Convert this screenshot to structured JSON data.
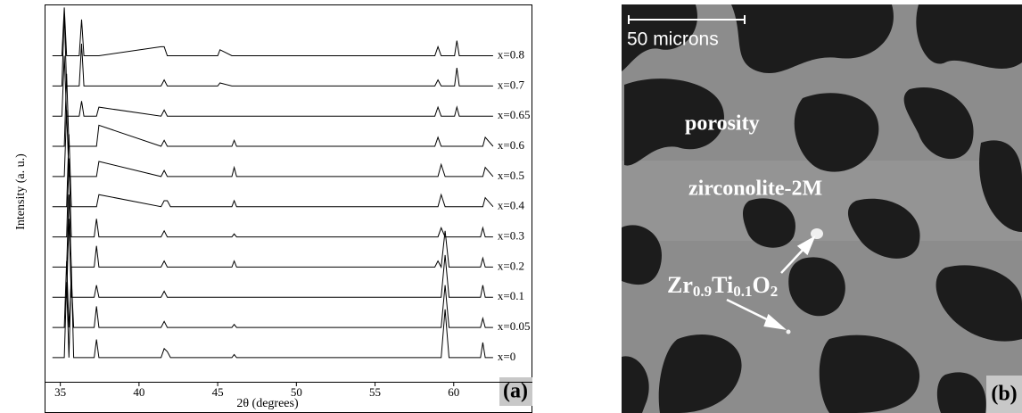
{
  "chart_data": {
    "type": "line",
    "x_label": "2θ (degrees)",
    "y_label": "Intensity (a. u.)",
    "panel_label": "(a)",
    "xlim": [
      34,
      65
    ],
    "ylim": [
      5,
      130
    ],
    "xticks": [
      35,
      40,
      45,
      50,
      55,
      60
    ],
    "x": [
      34.5,
      35.1,
      35.25,
      35.4,
      35.55,
      35.7,
      35.85,
      36.2,
      36.35,
      36.5,
      37.15,
      37.3,
      37.45,
      41.4,
      41.6,
      41.8,
      42.0,
      45.0,
      45.15,
      45.9,
      46.05,
      46.2,
      58.8,
      59.0,
      59.2,
      59.45,
      59.7,
      60.05,
      60.2,
      60.35,
      61.7,
      61.85,
      62.0,
      62.5
    ],
    "series": [
      {
        "name": "x=0",
        "color": "#000000",
        "values": [
          13,
          13,
          13,
          38,
          13,
          43,
          13,
          13,
          13,
          13,
          13,
          19,
          13,
          13,
          16,
          15,
          13,
          13,
          13,
          13,
          14,
          13,
          13,
          13,
          13,
          29,
          13,
          13,
          13,
          13,
          13,
          18,
          13,
          13
        ]
      },
      {
        "name": "x=0.05",
        "color": "#000000",
        "values": [
          23,
          23,
          23,
          45,
          23,
          39,
          23,
          23,
          23,
          23,
          23,
          30,
          23,
          23,
          25,
          23,
          23,
          23,
          23,
          23,
          24,
          23,
          23,
          23,
          23,
          37,
          23,
          23,
          23,
          23,
          23,
          26,
          23,
          23
        ]
      },
      {
        "name": "x=0.1",
        "color": "#000000",
        "values": [
          33,
          33,
          33,
          33,
          59,
          33,
          33,
          33,
          33,
          33,
          33,
          37,
          33,
          33,
          35,
          33,
          33,
          33,
          33,
          33,
          33,
          33,
          33,
          33,
          33,
          47,
          33,
          33,
          33,
          33,
          33,
          37,
          33,
          33
        ]
      },
      {
        "name": "x=0.2",
        "color": "#000000",
        "values": [
          43,
          43,
          43,
          43,
          67,
          43,
          43,
          43,
          43,
          43,
          43,
          50,
          43,
          43,
          45,
          43,
          43,
          43,
          43,
          43,
          45,
          43,
          43,
          45,
          43,
          55,
          43,
          43,
          43,
          43,
          43,
          46,
          43,
          43
        ]
      },
      {
        "name": "x=0.3",
        "color": "#000000",
        "values": [
          53,
          53,
          53,
          53,
          79,
          53,
          53,
          53,
          53,
          53,
          53,
          59,
          53,
          53,
          55,
          53,
          53,
          53,
          53,
          53,
          54,
          53,
          53,
          53,
          56,
          53,
          53,
          53,
          53,
          53,
          53,
          56,
          53,
          53
        ]
      },
      {
        "name": "x=0.4",
        "color": "#000000",
        "values": [
          63,
          63,
          63,
          63,
          87,
          63,
          63,
          63,
          63,
          63,
          63,
          63,
          67,
          63,
          65,
          65,
          63,
          63,
          63,
          63,
          65,
          63,
          63,
          63,
          67,
          63,
          63,
          63,
          63,
          63,
          63,
          63,
          66,
          63
        ]
      },
      {
        "name": "x=0.5",
        "color": "#000000",
        "values": [
          73,
          73,
          73,
          95,
          73,
          73,
          73,
          73,
          73,
          73,
          73,
          73,
          78,
          73,
          75,
          73,
          73,
          73,
          73,
          73,
          76,
          73,
          73,
          73,
          77,
          73,
          73,
          73,
          73,
          73,
          73,
          73,
          76,
          73
        ]
      },
      {
        "name": "x=0.6",
        "color": "#000000",
        "values": [
          83,
          83,
          83,
          107,
          83,
          83,
          83,
          83,
          83,
          83,
          83,
          83,
          90,
          83,
          85,
          83,
          83,
          83,
          83,
          83,
          85,
          83,
          83,
          86,
          83,
          83,
          83,
          83,
          83,
          83,
          83,
          83,
          86,
          83
        ]
      },
      {
        "name": "x=0.65",
        "color": "#000000",
        "values": [
          93,
          93,
          113,
          93,
          93,
          93,
          93,
          93,
          98,
          93,
          93,
          93,
          96,
          93,
          95,
          93,
          93,
          93,
          93,
          93,
          93,
          93,
          93,
          96,
          93,
          93,
          93,
          93,
          96,
          93,
          93,
          93,
          93,
          93
        ]
      },
      {
        "name": "x=0.7",
        "color": "#000000",
        "values": [
          103,
          103,
          127,
          103,
          103,
          103,
          103,
          103,
          117,
          103,
          103,
          103,
          103,
          103,
          105,
          103,
          103,
          103,
          104,
          103,
          103,
          103,
          103,
          105,
          103,
          103,
          103,
          103,
          109,
          103,
          103,
          103,
          103,
          103
        ]
      },
      {
        "name": "x=0.8",
        "color": "#000000",
        "values": [
          113,
          113,
          129,
          113,
          113,
          113,
          113,
          113,
          125,
          113,
          113,
          113,
          113,
          116,
          116,
          113,
          113,
          113,
          115,
          113,
          113,
          113,
          113,
          116,
          113,
          113,
          113,
          113,
          118,
          113,
          113,
          113,
          113,
          113
        ]
      }
    ]
  },
  "micrograph": {
    "scale_bar": "50 microns",
    "labels": [
      "porosity",
      "zirconolite-2M"
    ],
    "formula": [
      "Zr",
      "0.9",
      "Ti",
      "0.1",
      "O",
      "2"
    ],
    "panel_label": "(b)"
  }
}
